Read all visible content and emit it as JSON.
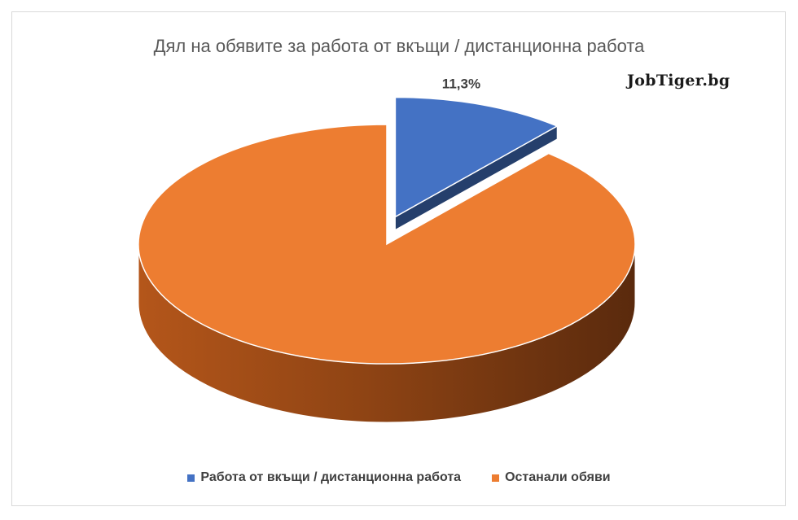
{
  "title": "Дял на обявите за работа от вкъщи / дистанционна работа",
  "brand": "JobTiger.bg",
  "chart_data": {
    "type": "pie",
    "style": "3d-exploded",
    "title": "Дял на обявите за работа от вкъщи / дистанционна работа",
    "slices": [
      {
        "name": "Работа от вкъщи / дистанционна работа",
        "value": 11.3,
        "label": "11,3%",
        "color": "#4472C4",
        "exploded": true
      },
      {
        "name": "Останали обяви",
        "value": 88.7,
        "label": "",
        "color": "#ED7D31",
        "exploded": false
      }
    ],
    "legend_position": "bottom"
  }
}
